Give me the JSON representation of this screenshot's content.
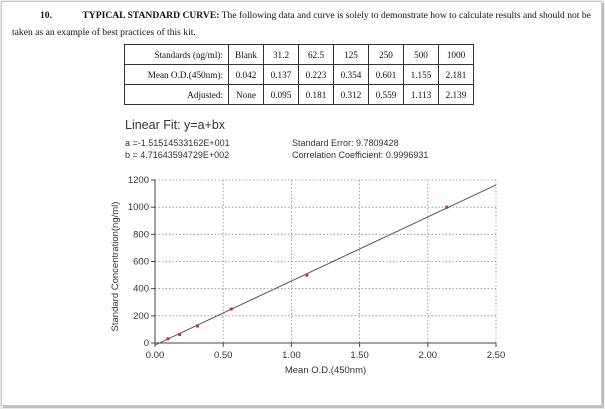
{
  "section": {
    "number": "10.",
    "title": "TYPICAL STANDARD CURVE:",
    "text_line1": "The following data and curve is solely to demonstrate how to calculate results and should not be",
    "text_line2": "taken as an example of best practices of this kit."
  },
  "table": {
    "rows": [
      {
        "label": "Standards (ng/ml):",
        "cells": [
          "Blank",
          "31.2",
          "62.5",
          "125",
          "250",
          "500",
          "1000"
        ]
      },
      {
        "label": "Mean O.D.(450nm):",
        "cells": [
          "0.042",
          "0.137",
          "0.223",
          "0.354",
          "0.601",
          "1.155",
          "2.181"
        ]
      },
      {
        "label": "Adjusted:",
        "cells": [
          "None",
          "0.095",
          "0.181",
          "0.312",
          "0.559",
          "1.113",
          "2.139"
        ]
      }
    ]
  },
  "fit": {
    "title": "Linear Fit: y=a+bx",
    "a": "a =-1.51514533162E+001",
    "b": "b = 4.71643594729E+002",
    "std_error": "Standard Error: 9.7809428",
    "corr": "Correlation Coefficient: 0.9996931"
  },
  "chart_data": {
    "type": "scatter",
    "xlabel": "Mean O.D.(450nm)",
    "ylabel": "Standard Concentration(ng/ml)",
    "xlim": [
      0,
      2.5
    ],
    "ylim": [
      0,
      1200
    ],
    "x_ticks": [
      "0.00",
      "0.50",
      "1.00",
      "1.50",
      "2.00",
      "2.50"
    ],
    "y_ticks": [
      "0",
      "200",
      "400",
      "600",
      "800",
      "1000",
      "1200"
    ],
    "grid": true,
    "points": [
      {
        "x": 0.095,
        "y": 31.2
      },
      {
        "x": 0.181,
        "y": 62.5
      },
      {
        "x": 0.312,
        "y": 125
      },
      {
        "x": 0.559,
        "y": 250
      },
      {
        "x": 1.113,
        "y": 500
      },
      {
        "x": 2.139,
        "y": 1000
      }
    ],
    "fit_line": {
      "intercept": -15.1514533162,
      "slope": 471.643594729,
      "x_range": [
        0.0,
        2.5
      ]
    },
    "colors": {
      "point": "#b23a3a",
      "line": "#555555",
      "grid": "#8a8a8a"
    }
  }
}
